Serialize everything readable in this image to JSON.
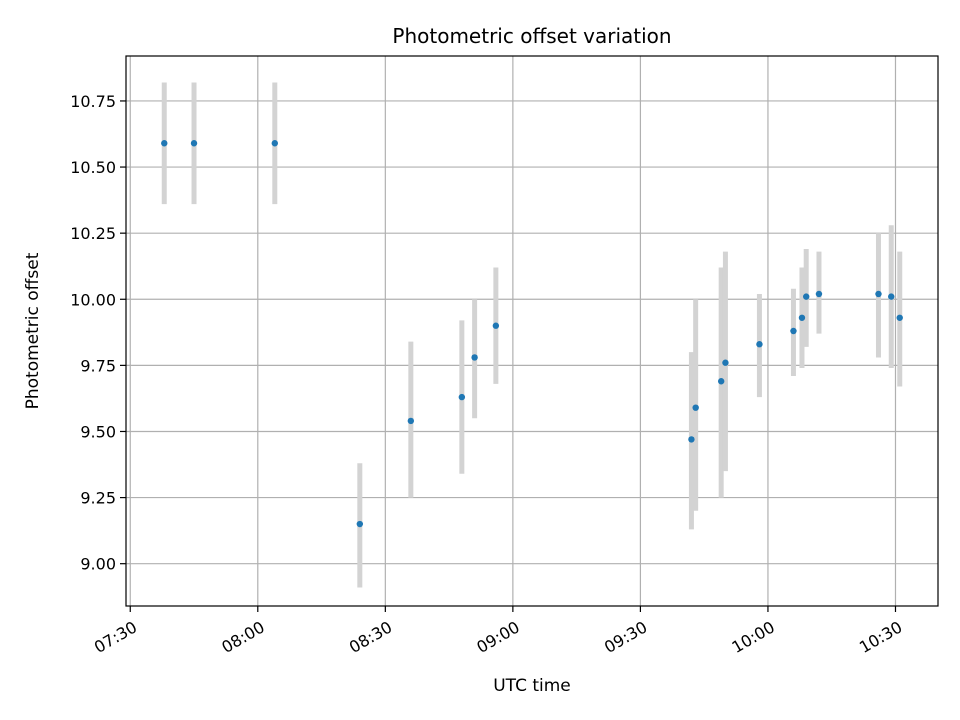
{
  "chart_data": {
    "type": "scatter",
    "title": "Photometric offset variation",
    "xlabel": "UTC time",
    "ylabel": "Photometric offset",
    "xlim": [
      "07:29",
      "10:40"
    ],
    "ylim": [
      8.84,
      10.92
    ],
    "grid": true,
    "x_ticks": [
      {
        "time": "07:30",
        "label": "07:30"
      },
      {
        "time": "08:00",
        "label": "08:00"
      },
      {
        "time": "08:30",
        "label": "08:30"
      },
      {
        "time": "09:00",
        "label": "09:00"
      },
      {
        "time": "09:30",
        "label": "09:30"
      },
      {
        "time": "10:00",
        "label": "10:00"
      },
      {
        "time": "10:30",
        "label": "10:30"
      }
    ],
    "y_ticks": [
      {
        "value": 9.0,
        "label": "9.00"
      },
      {
        "value": 9.25,
        "label": "9.25"
      },
      {
        "value": 9.5,
        "label": "9.50"
      },
      {
        "value": 9.75,
        "label": "9.75"
      },
      {
        "value": 10.0,
        "label": "10.00"
      },
      {
        "value": 10.25,
        "label": "10.25"
      },
      {
        "value": 10.5,
        "label": "10.50"
      },
      {
        "value": 10.75,
        "label": "10.75"
      }
    ],
    "marker_color": "#1f77b4",
    "errorbar_color": "#d3d3d3",
    "points": [
      {
        "time": "07:38",
        "y": 10.59,
        "low": 10.36,
        "high": 10.82
      },
      {
        "time": "07:45",
        "y": 10.59,
        "low": 10.36,
        "high": 10.82
      },
      {
        "time": "08:04",
        "y": 10.59,
        "low": 10.36,
        "high": 10.82
      },
      {
        "time": "08:24",
        "y": 9.15,
        "low": 8.91,
        "high": 9.38
      },
      {
        "time": "08:36",
        "y": 9.54,
        "low": 9.25,
        "high": 9.84
      },
      {
        "time": "08:48",
        "y": 9.63,
        "low": 9.34,
        "high": 9.92
      },
      {
        "time": "08:51",
        "y": 9.78,
        "low": 9.55,
        "high": 10.0
      },
      {
        "time": "08:56",
        "y": 9.9,
        "low": 9.68,
        "high": 10.12
      },
      {
        "time": "09:42",
        "y": 9.47,
        "low": 9.13,
        "high": 9.8
      },
      {
        "time": "09:43",
        "y": 9.59,
        "low": 9.2,
        "high": 10.0
      },
      {
        "time": "09:49",
        "y": 9.69,
        "low": 9.25,
        "high": 10.12
      },
      {
        "time": "09:50",
        "y": 9.76,
        "low": 9.35,
        "high": 10.18
      },
      {
        "time": "09:58",
        "y": 9.83,
        "low": 9.63,
        "high": 10.02
      },
      {
        "time": "10:06",
        "y": 9.88,
        "low": 9.71,
        "high": 10.04
      },
      {
        "time": "10:08",
        "y": 9.93,
        "low": 9.74,
        "high": 10.12
      },
      {
        "time": "10:09",
        "y": 10.01,
        "low": 9.82,
        "high": 10.19
      },
      {
        "time": "10:12",
        "y": 10.02,
        "low": 9.87,
        "high": 10.18
      },
      {
        "time": "10:26",
        "y": 10.02,
        "low": 9.78,
        "high": 10.25
      },
      {
        "time": "10:29",
        "y": 10.01,
        "low": 9.74,
        "high": 10.28
      },
      {
        "time": "10:31",
        "y": 9.93,
        "low": 9.67,
        "high": 10.18
      }
    ]
  }
}
